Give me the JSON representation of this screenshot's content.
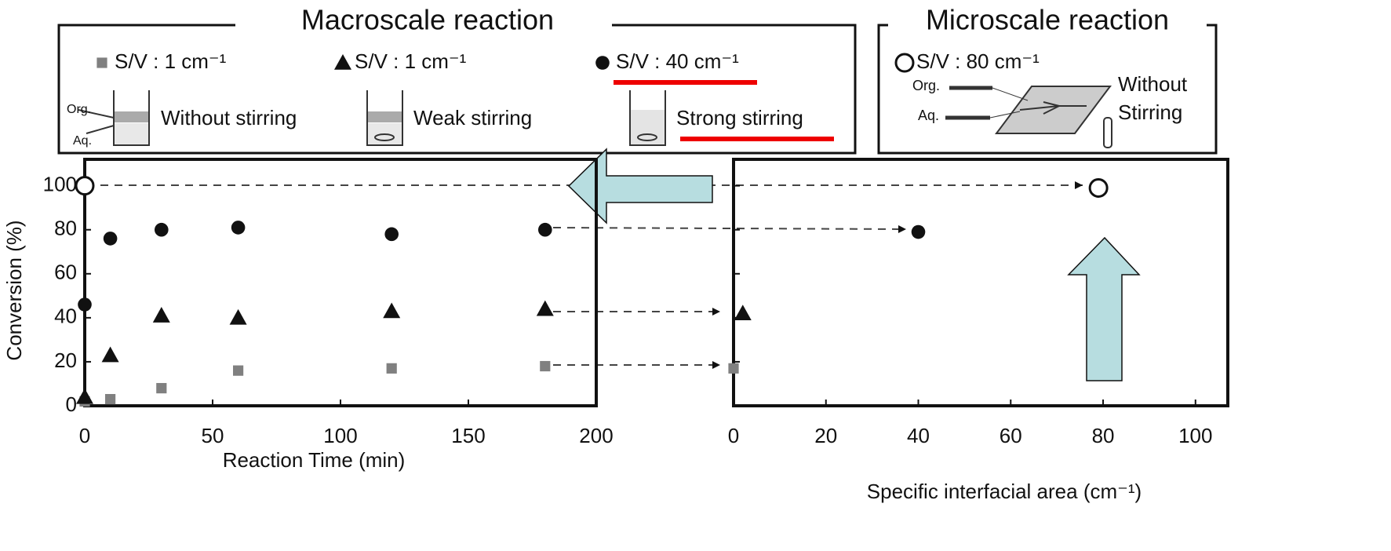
{
  "legend_groups": [
    "Macroscale reaction",
    "Microscale reaction"
  ],
  "diagram_labels": {
    "org": "Org.",
    "aq": "Aq."
  },
  "chart_data": [
    {
      "type": "scatter",
      "xlabel": "Reaction Time (min)",
      "ylabel": "Conversion (%)",
      "xlim": [
        0,
        200
      ],
      "xticks": [
        0,
        50,
        100,
        150,
        200
      ],
      "ylim": [
        0,
        112
      ],
      "yticks": [
        0,
        20,
        40,
        60,
        80,
        100
      ],
      "series": [
        {
          "name": "S/V : 1 cm⁻¹",
          "stirring": "Without stirring",
          "marker": "square",
          "color": "#808080",
          "x": [
            0,
            10,
            30,
            60,
            120,
            180
          ],
          "values": [
            2,
            3,
            8,
            16,
            17,
            18
          ]
        },
        {
          "name": "S/V : 1 cm⁻¹",
          "stirring": "Weak stirring",
          "marker": "triangle",
          "color": "#111111",
          "x": [
            0,
            10,
            30,
            60,
            120,
            180
          ],
          "values": [
            4,
            23,
            41,
            40,
            43,
            44
          ]
        },
        {
          "name": "S/V : 40 cm⁻¹",
          "stirring": "Strong stirring",
          "marker": "circle",
          "color": "#111111",
          "x": [
            0,
            10,
            30,
            60,
            120,
            180
          ],
          "values": [
            46,
            76,
            80,
            81,
            78,
            80
          ]
        },
        {
          "name": "S/V : 80 cm⁻¹",
          "stirring": "Without Stirring",
          "marker": "open-circle",
          "color": "#111111",
          "x": [
            0
          ],
          "values": [
            100
          ]
        }
      ]
    },
    {
      "type": "scatter",
      "xlabel": "Specific interfacial area (cm⁻¹)",
      "xlim": [
        0,
        107
      ],
      "xticks": [
        0,
        20,
        40,
        60,
        80,
        100
      ],
      "ylim": [
        0,
        112
      ],
      "yticks": [
        0,
        20,
        40,
        60,
        80,
        100
      ],
      "series": [
        {
          "marker": "square",
          "color": "#808080",
          "x": [
            0
          ],
          "values": [
            17
          ]
        },
        {
          "marker": "triangle",
          "color": "#111111",
          "x": [
            2
          ],
          "values": [
            42
          ]
        },
        {
          "marker": "circle",
          "color": "#111111",
          "x": [
            40
          ],
          "values": [
            79
          ]
        },
        {
          "marker": "open-circle",
          "color": "#111111",
          "x": [
            79
          ],
          "values": [
            99
          ]
        }
      ]
    }
  ]
}
